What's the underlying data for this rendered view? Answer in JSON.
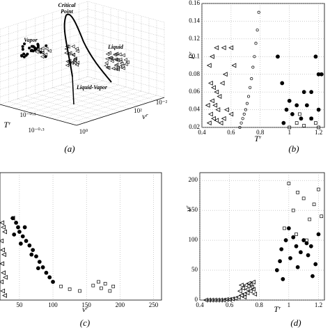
{
  "chart_data": [
    {
      "type": "scatter3d",
      "caption": "(a)",
      "xlabel": "Tʳ",
      "ylabel": "vʳ",
      "annotations": [
        "Critical",
        "Point",
        "Vapor",
        "Liquid",
        "Liquid-Vapor"
      ],
      "xtick_labels": [
        "10⁻⁰·¹",
        "10⁻⁰·³"
      ],
      "ytick_labels": [
        "10⁰",
        "10²",
        "10⁻²"
      ]
    },
    {
      "type": "scatter",
      "caption": "(b)",
      "xlabel": "Tʳ",
      "ylabel": "Pʳ",
      "xlim": [
        0.4,
        1.24
      ],
      "ylim": [
        0.02,
        0.16
      ],
      "xticks": [
        0.4,
        0.6,
        0.8,
        1,
        1.2
      ],
      "yticks": [
        0.02,
        0.04,
        0.06,
        0.08,
        0.1,
        0.12,
        0.14,
        0.16
      ],
      "grid": true,
      "series": [
        {
          "marker": "triangle",
          "color": "#000000",
          "x": [
            0.45,
            0.47,
            0.5,
            0.55,
            0.46,
            0.48,
            0.5,
            0.52,
            0.47,
            0.49,
            0.51,
            0.46,
            0.48,
            0.5,
            0.53,
            0.55,
            0.45,
            0.57,
            0.6,
            0.62,
            0.56,
            0.6,
            0.44,
            0.54
          ],
          "values": [
            0.09,
            0.1,
            0.11,
            0.11,
            0.07,
            0.065,
            0.06,
            0.055,
            0.05,
            0.045,
            0.04,
            0.035,
            0.03,
            0.028,
            0.025,
            0.03,
            0.025,
            0.04,
            0.11,
            0.09,
            0.08,
            0.035,
            0.045,
            0.07
          ]
        },
        {
          "marker": "ring",
          "color": "#000000",
          "x": [
            0.66,
            0.67,
            0.68,
            0.69,
            0.7,
            0.71,
            0.72,
            0.73,
            0.74,
            0.75,
            0.76,
            0.77,
            0.78,
            0.79
          ],
          "values": [
            0.02,
            0.025,
            0.03,
            0.035,
            0.04,
            0.047,
            0.055,
            0.065,
            0.075,
            0.088,
            0.1,
            0.115,
            0.13,
            0.15
          ]
        },
        {
          "marker": "dot",
          "color": "#000000",
          "x": [
            0.92,
            1.18,
            1.22,
            1.2,
            0.95,
            1.1,
            1.15,
            1.0,
            1.05,
            1.12,
            0.98,
            1.02,
            1.08,
            0.96,
            1.2,
            1.15
          ],
          "values": [
            0.1,
            0.1,
            0.08,
            0.08,
            0.07,
            0.06,
            0.06,
            0.05,
            0.045,
            0.045,
            0.04,
            0.035,
            0.03,
            0.025,
            0.04,
            0.03
          ]
        },
        {
          "marker": "square",
          "color": "#000000",
          "x": [
            1.0,
            1.05,
            1.1,
            1.15,
            1.2,
            1.07,
            1.18
          ],
          "values": [
            0.02,
            0.025,
            0.022,
            0.03,
            0.02,
            0.035,
            0.025
          ]
        }
      ]
    },
    {
      "type": "scatter",
      "caption": "(c)",
      "xlabel": "vʳ",
      "xlim": [
        21,
        262
      ],
      "ylim": [
        0.02,
        0.16
      ],
      "xticks": [
        50,
        100,
        150,
        200,
        250
      ],
      "grid": true,
      "series": [
        {
          "marker": "triangle",
          "color": "#000000",
          "x": [
            24,
            26,
            28,
            23,
            25,
            27,
            24,
            26,
            29,
            23,
            25,
            28,
            40
          ],
          "values": [
            0.105,
            0.1,
            0.095,
            0.085,
            0.075,
            0.07,
            0.06,
            0.05,
            0.045,
            0.04,
            0.03,
            0.025,
            0.11
          ]
        },
        {
          "marker": "dot",
          "color": "#000000",
          "x": [
            40,
            45,
            48,
            50,
            55,
            60,
            65,
            70,
            75,
            80,
            85,
            90,
            95,
            100,
            42,
            52,
            58,
            68,
            78
          ],
          "values": [
            0.11,
            0.105,
            0.1,
            0.095,
            0.09,
            0.085,
            0.08,
            0.075,
            0.068,
            0.062,
            0.056,
            0.05,
            0.045,
            0.04,
            0.092,
            0.082,
            0.1,
            0.07,
            0.055
          ]
        },
        {
          "marker": "square",
          "color": "#000000",
          "x": [
            112,
            125,
            140,
            160,
            168,
            172,
            178,
            185,
            190
          ],
          "values": [
            0.035,
            0.032,
            0.03,
            0.036,
            0.04,
            0.033,
            0.038,
            0.03,
            0.035
          ]
        }
      ]
    },
    {
      "type": "scatter",
      "caption": "(d)",
      "xlabel": "Tʳ",
      "ylabel": "vʳ",
      "xlim": [
        0.4,
        1.24
      ],
      "ylim": [
        0,
        213
      ],
      "xticks": [
        0.4,
        0.6,
        0.8,
        1,
        1.2
      ],
      "yticks": [
        0,
        50,
        100,
        150,
        200
      ],
      "grid": true,
      "series": [
        {
          "marker": "triangle",
          "color": "#000000",
          "x": [
            0.44,
            0.46,
            0.48,
            0.5,
            0.52,
            0.54,
            0.56,
            0.58,
            0.6,
            0.62,
            0.64,
            0.66,
            0.68,
            0.7,
            0.72,
            0.74,
            0.76,
            0.67,
            0.69,
            0.71,
            0.73,
            0.75,
            0.77,
            0.7,
            0.72,
            0.74,
            0.68,
            0.76
          ],
          "values": [
            0,
            0,
            0,
            0,
            0,
            0,
            0,
            1,
            1,
            2,
            3,
            5,
            8,
            10,
            12,
            15,
            18,
            15,
            20,
            25,
            28,
            22,
            10,
            5,
            18,
            26,
            25,
            30
          ]
        },
        {
          "marker": "dot",
          "color": "#000000",
          "x": [
            0.92,
            0.95,
            0.98,
            1.0,
            1.03,
            1.05,
            1.08,
            1.1,
            1.12,
            1.15,
            1.18,
            1.2,
            0.96,
            1.01,
            1.06,
            1.13,
            1.16,
            0.94
          ],
          "values": [
            50,
            85,
            100,
            120,
            105,
            90,
            80,
            100,
            95,
            90,
            60,
            110,
            35,
            70,
            55,
            75,
            40,
            65
          ]
        },
        {
          "marker": "square",
          "color": "#000000",
          "x": [
            0.97,
            1.0,
            1.03,
            1.06,
            1.1,
            1.14,
            1.17,
            1.2,
            1.22,
            1.05,
            1.12
          ],
          "values": [
            120,
            195,
            150,
            180,
            170,
            135,
            160,
            185,
            140,
            110,
            100
          ]
        }
      ]
    }
  ]
}
